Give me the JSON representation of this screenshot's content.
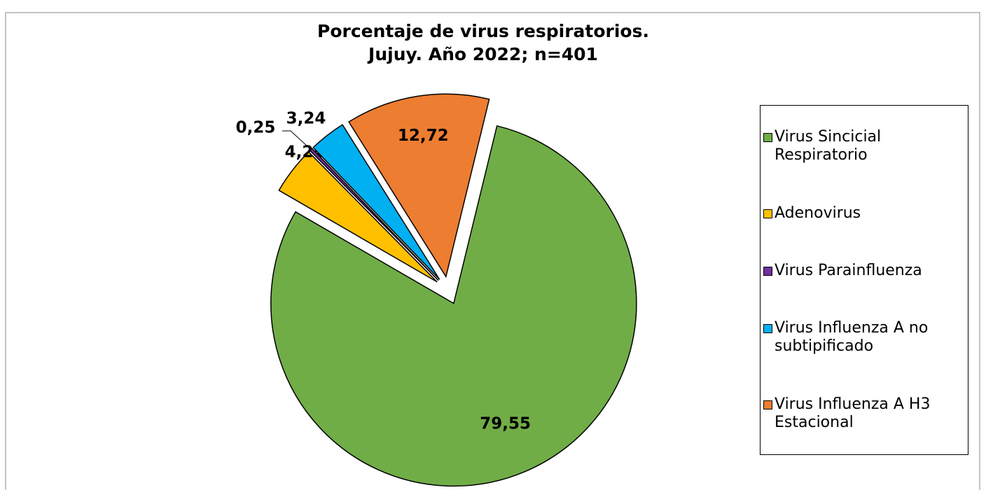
{
  "chart_data": {
    "type": "pie",
    "title": [
      "Porcentaje de virus respiratorios.",
      "Jujuy. Año 2022; n=401"
    ],
    "categories": [
      "Virus Sincicial Respiratorio",
      "Adenovirus",
      "Virus Parainfluenza",
      "Virus Influenza A no subtipificado",
      "Virus Influenza A  H3 Estacional"
    ],
    "values": [
      79.55,
      4.24,
      0.25,
      3.24,
      12.72
    ],
    "value_labels": [
      "79,55",
      "4,24",
      "0,25",
      "3,24",
      "12,72"
    ],
    "colors": [
      "#70ad47",
      "#ffc000",
      "#7030a0",
      "#00b0f0",
      "#ed7d31"
    ],
    "legend": "right"
  }
}
